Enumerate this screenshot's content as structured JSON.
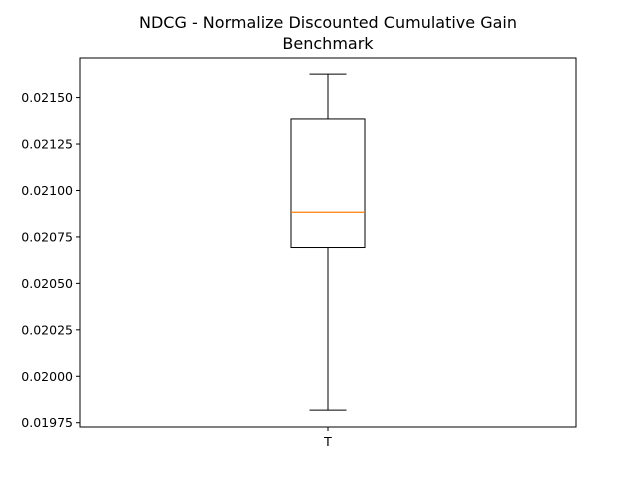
{
  "chart_data": {
    "type": "box",
    "title_lines": [
      "NDCG - Normalize Discounted Cumulative Gain",
      "Benchmark"
    ],
    "xlabel": "",
    "ylabel": "",
    "categories": [
      "T"
    ],
    "boxes": [
      {
        "label": "T",
        "whisker_low": 0.019818,
        "q1": 0.020693,
        "median": 0.020883,
        "q3": 0.021385,
        "whisker_high": 0.021626
      }
    ],
    "ylim": [
      0.019727,
      0.021713
    ],
    "yticks": [
      0.01975,
      0.02,
      0.02025,
      0.0205,
      0.02075,
      0.021,
      0.02125,
      0.0215
    ],
    "ytick_labels": [
      "0.01975",
      "0.02000",
      "0.02025",
      "0.02050",
      "0.02075",
      "0.02100",
      "0.02125",
      "0.02150"
    ],
    "grid": false,
    "colors": {
      "box": "#000000",
      "median": "#ff7f0e",
      "axes": "#000000"
    }
  }
}
